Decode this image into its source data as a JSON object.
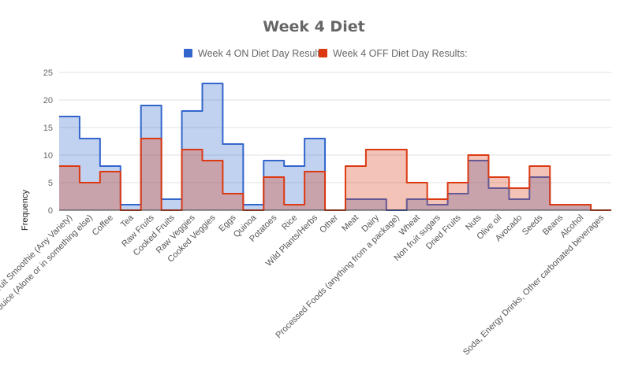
{
  "chart_data": {
    "type": "area",
    "subtype": "stepped-area",
    "title": "Week 4 Diet",
    "xlabel": "",
    "ylabel": "Frequency",
    "ylim": [
      0,
      25
    ],
    "yticks": [
      0,
      5,
      10,
      15,
      20,
      25
    ],
    "grid": true,
    "legend_position": "top",
    "categories": [
      "Fruit Smoothie (Any Variety)",
      "Green Juice (Alone or in something else)",
      "Coffee",
      "Tea",
      "Raw Fruits",
      "Cooked Fruits",
      "Raw Veggies",
      "Cooked Veggies",
      "Eggs",
      "Quinoa",
      "Potatoes",
      "Rice",
      "Wild Plants/Herbs",
      "Other",
      "Meat",
      "Dairy",
      "Processed Foods (anything from a package)",
      "Wheat",
      "Non fruit sugars",
      "Dried Fruits",
      "Nuts",
      "Olive oil",
      "Avocado",
      "Seeds",
      "Beans",
      "Alcohol",
      "Soda, Energy Drinks, Other carbonated beverages"
    ],
    "series": [
      {
        "name": "Week 4 ON Diet Day Results:",
        "color": "#3366cc",
        "fill": "#c2d1ef",
        "values": [
          17,
          13,
          8,
          1,
          19,
          2,
          18,
          23,
          12,
          1,
          9,
          8,
          13,
          0,
          2,
          2,
          0,
          2,
          1,
          3,
          9,
          4,
          2,
          6,
          1,
          1,
          0
        ]
      },
      {
        "name": "Week 4 OFF Diet Day Results:",
        "color": "#dc3912",
        "fill": "#f4c4b8",
        "values": [
          8,
          5,
          7,
          0,
          13,
          0,
          11,
          9,
          3,
          0,
          6,
          1,
          7,
          0,
          8,
          11,
          11,
          5,
          2,
          5,
          10,
          6,
          4,
          8,
          1,
          1,
          0
        ]
      }
    ]
  }
}
